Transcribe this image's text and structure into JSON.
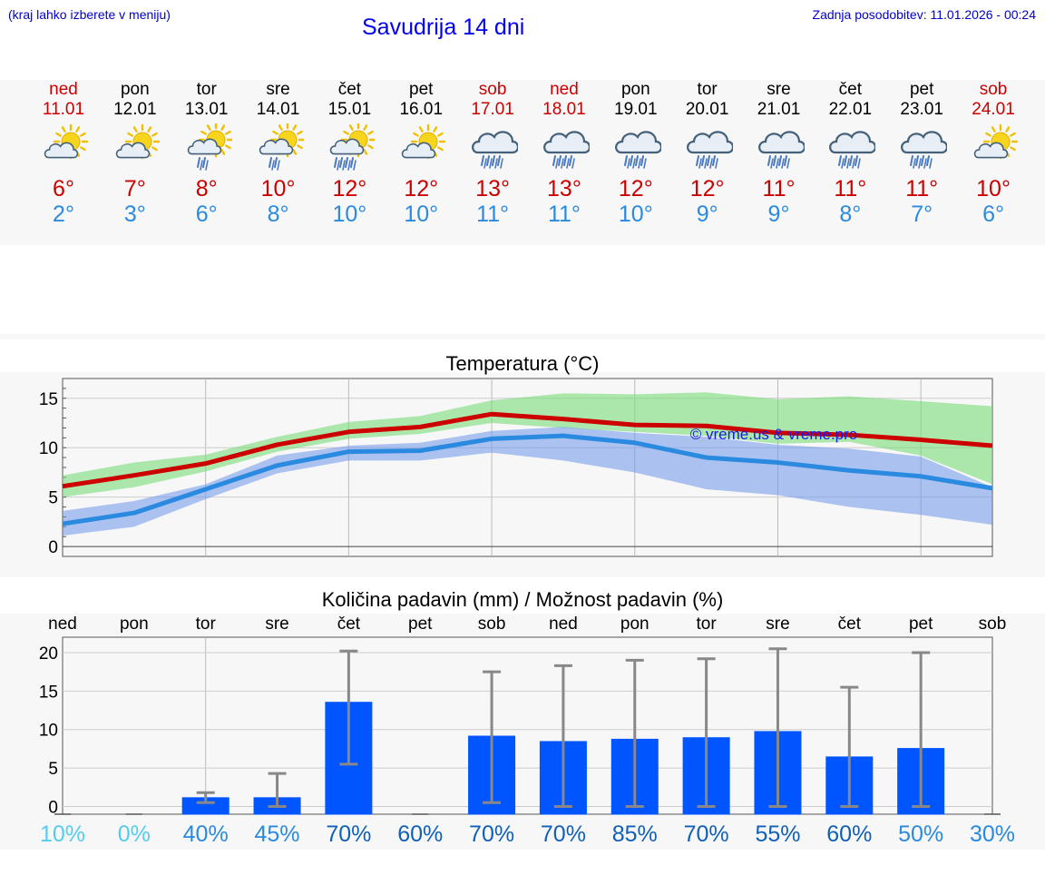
{
  "header": {
    "hint": "(kraj lahko izberete v meniju)",
    "title": "Savudrija 14 dni",
    "updated": "Zadnja posodobitev: 11.01.2026 - 00:24"
  },
  "days": [
    {
      "name": "ned",
      "date": "11.01",
      "weekend": true,
      "icon": "partly-cloudy-sun-icon",
      "max": "6°",
      "min": "2°"
    },
    {
      "name": "pon",
      "date": "12.01",
      "weekend": false,
      "icon": "partly-cloudy-sun-icon",
      "max": "7°",
      "min": "3°"
    },
    {
      "name": "tor",
      "date": "13.01",
      "weekend": false,
      "icon": "sun-cloud-light-rain-icon",
      "max": "8°",
      "min": "6°"
    },
    {
      "name": "sre",
      "date": "14.01",
      "weekend": false,
      "icon": "sun-cloud-light-rain-icon",
      "max": "10°",
      "min": "8°"
    },
    {
      "name": "čet",
      "date": "15.01",
      "weekend": false,
      "icon": "sun-cloud-rain-icon",
      "max": "12°",
      "min": "10°"
    },
    {
      "name": "pet",
      "date": "16.01",
      "weekend": false,
      "icon": "partly-cloudy-sun-icon",
      "max": "12°",
      "min": "10°"
    },
    {
      "name": "sob",
      "date": "17.01",
      "weekend": true,
      "icon": "cloud-rain-icon",
      "max": "13°",
      "min": "11°"
    },
    {
      "name": "ned",
      "date": "18.01",
      "weekend": true,
      "icon": "cloud-rain-icon",
      "max": "13°",
      "min": "11°"
    },
    {
      "name": "pon",
      "date": "19.01",
      "weekend": false,
      "icon": "cloud-rain-icon",
      "max": "12°",
      "min": "10°"
    },
    {
      "name": "tor",
      "date": "20.01",
      "weekend": false,
      "icon": "cloud-rain-icon",
      "max": "12°",
      "min": "9°"
    },
    {
      "name": "sre",
      "date": "21.01",
      "weekend": false,
      "icon": "cloud-rain-icon",
      "max": "11°",
      "min": "9°"
    },
    {
      "name": "čet",
      "date": "22.01",
      "weekend": false,
      "icon": "cloud-rain-icon",
      "max": "11°",
      "min": "8°"
    },
    {
      "name": "pet",
      "date": "23.01",
      "weekend": false,
      "icon": "cloud-rain-icon",
      "max": "11°",
      "min": "7°"
    },
    {
      "name": "sob",
      "date": "24.01",
      "weekend": true,
      "icon": "partly-cloudy-sun-icon",
      "max": "10°",
      "min": "6°"
    }
  ],
  "colors": {
    "max": "#cc0000",
    "min": "#2a8ae0",
    "bar": "#0055ff"
  },
  "chart_data": [
    {
      "type": "line",
      "title": "Temperatura (°C)",
      "watermark": "© vreme.us & vreme.pro",
      "ylim": [
        -1,
        17
      ],
      "yticks": [
        0,
        5,
        10,
        15
      ],
      "x": [
        0,
        1,
        2,
        3,
        4,
        5,
        6,
        7,
        8,
        9,
        10,
        11,
        12,
        13
      ],
      "series": [
        {
          "name": "max",
          "values": [
            6.1,
            7.2,
            8.4,
            10.3,
            11.6,
            12.1,
            13.4,
            12.9,
            12.3,
            12.2,
            11.5,
            11.3,
            10.8,
            10.2
          ],
          "band_low": [
            5.0,
            6.0,
            7.6,
            9.6,
            10.9,
            11.4,
            12.5,
            12.0,
            11.6,
            11.2,
            10.4,
            10.6,
            9.2,
            6.3
          ],
          "band_high": [
            7.2,
            8.5,
            9.3,
            11.1,
            12.6,
            13.2,
            14.8,
            15.5,
            15.4,
            15.6,
            14.9,
            15.2,
            14.7,
            14.2
          ]
        },
        {
          "name": "min",
          "values": [
            2.3,
            3.4,
            5.8,
            8.2,
            9.6,
            9.7,
            10.9,
            11.2,
            10.5,
            9.0,
            8.5,
            7.7,
            7.1,
            5.9
          ],
          "band_low": [
            1.1,
            2.0,
            4.8,
            7.4,
            8.7,
            8.7,
            9.5,
            8.7,
            7.5,
            5.8,
            5.2,
            4.0,
            3.2,
            2.2
          ],
          "band_high": [
            3.6,
            4.6,
            6.3,
            9.2,
            10.2,
            10.5,
            11.7,
            12.1,
            11.5,
            11.1,
            10.3,
            9.9,
            9.1,
            6.0
          ]
        }
      ]
    },
    {
      "type": "bar",
      "title": "Količina padavin (mm) / Možnost padavin (%)",
      "categories": [
        "ned",
        "pon",
        "tor",
        "sre",
        "čet",
        "pet",
        "sob",
        "ned",
        "pon",
        "tor",
        "sre",
        "čet",
        "pet",
        "sob"
      ],
      "values": [
        0,
        0,
        1.2,
        1.2,
        13.6,
        0,
        9.2,
        8.5,
        8.8,
        9.0,
        9.8,
        6.5,
        7.6,
        0
      ],
      "err_low": [
        0,
        0,
        0.5,
        0,
        5.5,
        0,
        0.5,
        0,
        0,
        0,
        0,
        0,
        0,
        0
      ],
      "err_high": [
        0,
        0,
        1.8,
        4.3,
        20.2,
        0,
        17.5,
        18.3,
        19.0,
        19.2,
        20.5,
        15.5,
        20.0,
        0
      ],
      "probability": [
        "10%",
        "0%",
        "40%",
        "45%",
        "70%",
        "60%",
        "70%",
        "70%",
        "85%",
        "70%",
        "55%",
        "60%",
        "50%",
        "30%"
      ],
      "probability_colors": [
        "#55ccee",
        "#55ccee",
        "#2a8ae0",
        "#2a8ae0",
        "#1060b8",
        "#1060b8",
        "#1060b8",
        "#1060b8",
        "#1060b8",
        "#1060b8",
        "#1060b8",
        "#1060b8",
        "#2a8ae0",
        "#2a8ae0"
      ],
      "ylim": [
        -1,
        22
      ],
      "yticks": [
        0,
        5,
        10,
        15,
        20
      ]
    }
  ]
}
